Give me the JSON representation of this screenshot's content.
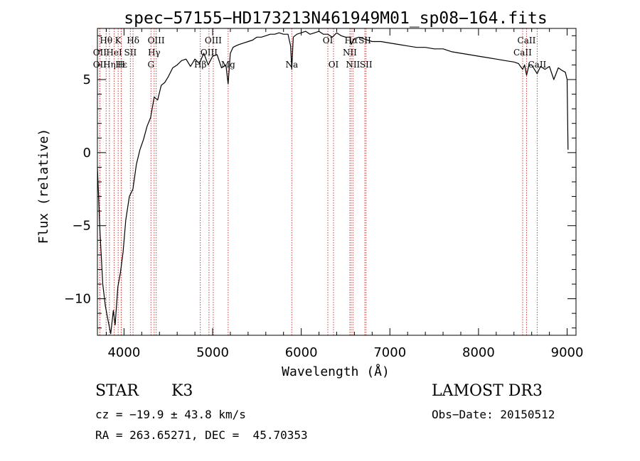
{
  "chart_data": {
    "type": "line",
    "title": "spec−57155−HD173213N461949M01_sp08−164.fits",
    "xlabel": "Wavelength (Å)",
    "ylabel": "Flux (relative)",
    "xlim": [
      3700,
      9100
    ],
    "ylim": [
      -12.5,
      8.5
    ],
    "xticks": [
      {
        "value": 4000,
        "label": "4000"
      },
      {
        "value": 5000,
        "label": "5000"
      },
      {
        "value": 6000,
        "label": "6000"
      },
      {
        "value": 7000,
        "label": "7000"
      },
      {
        "value": 8000,
        "label": "8000"
      },
      {
        "value": 9000,
        "label": "9000"
      }
    ],
    "yticks": [
      {
        "value": 5,
        "label": "5"
      },
      {
        "value": 0,
        "label": "0"
      },
      {
        "value": -5,
        "label": "−5"
      },
      {
        "value": -10,
        "label": "−10"
      }
    ],
    "series": [
      {
        "name": "flux",
        "x": [
          3700,
          3730,
          3760,
          3790,
          3820,
          3850,
          3880,
          3900,
          3930,
          3960,
          3990,
          4020,
          4060,
          4100,
          4140,
          4180,
          4220,
          4260,
          4300,
          4340,
          4380,
          4420,
          4460,
          4500,
          4550,
          4600,
          4650,
          4700,
          4750,
          4800,
          4850,
          4900,
          4950,
          5000,
          5050,
          5100,
          5150,
          5175,
          5200,
          5230,
          5260,
          5300,
          5350,
          5400,
          5450,
          5500,
          5550,
          5600,
          5650,
          5700,
          5750,
          5800,
          5850,
          5880,
          5893,
          5910,
          5950,
          6000,
          6050,
          6100,
          6150,
          6200,
          6250,
          6300,
          6350,
          6400,
          6450,
          6500,
          6550,
          6563,
          6600,
          6650,
          6700,
          6750,
          6800,
          6900,
          7000,
          7100,
          7200,
          7300,
          7400,
          7500,
          7600,
          7700,
          7800,
          7900,
          8000,
          8100,
          8200,
          8300,
          8400,
          8450,
          8498,
          8520,
          8542,
          8570,
          8600,
          8662,
          8700,
          8750,
          8800,
          8850,
          8900,
          8950,
          8980,
          9000,
          9010
        ],
        "y": [
          -1.0,
          -5.5,
          -9.0,
          -10.5,
          -11.5,
          -12.4,
          -10.8,
          -11.8,
          -9.2,
          -8.2,
          -6.8,
          -4.6,
          -3.0,
          -2.5,
          -0.8,
          0.2,
          0.9,
          1.8,
          2.4,
          3.8,
          3.6,
          4.6,
          4.8,
          5.2,
          5.8,
          6.0,
          6.3,
          6.4,
          5.9,
          6.4,
          6.1,
          6.8,
          6.0,
          6.6,
          6.7,
          5.8,
          6.0,
          4.7,
          6.8,
          7.2,
          7.3,
          7.4,
          7.5,
          7.6,
          7.7,
          7.9,
          7.9,
          8.0,
          8.1,
          8.1,
          8.2,
          8.1,
          8.1,
          7.3,
          5.7,
          7.9,
          8.1,
          8.2,
          8.3,
          8.1,
          8.2,
          8.3,
          8.1,
          8.1,
          7.9,
          8.2,
          8.0,
          7.9,
          7.9,
          7.4,
          7.8,
          7.9,
          7.8,
          7.7,
          7.6,
          7.6,
          7.5,
          7.4,
          7.3,
          7.2,
          7.2,
          7.1,
          7.1,
          6.9,
          6.8,
          6.7,
          6.6,
          6.5,
          6.4,
          6.3,
          6.2,
          6.1,
          5.7,
          6.0,
          5.3,
          6.0,
          6.0,
          5.4,
          5.9,
          5.7,
          5.9,
          5.0,
          5.8,
          5.6,
          5.5,
          5.0,
          0.2
        ]
      }
    ],
    "line_markers": [
      {
        "wavelength": 3798,
        "label": "Hθ",
        "row": 1
      },
      {
        "wavelength": 3727,
        "label": "OII",
        "row": 2
      },
      {
        "wavelength": 3835,
        "label": "Hη",
        "row": 3
      },
      {
        "wavelength": 3727,
        "label": "OII",
        "row": 3
      },
      {
        "wavelength": 3889,
        "label": "HeI",
        "row": 2
      },
      {
        "wavelength": 3934,
        "label": "K",
        "row": 1
      },
      {
        "wavelength": 3968,
        "label": "H",
        "row": 3
      },
      {
        "wavelength": 3970,
        "label": "Hε",
        "row": 3
      },
      {
        "wavelength": 4072,
        "label": "SII",
        "row": 2
      },
      {
        "wavelength": 4102,
        "label": "Hδ",
        "row": 1
      },
      {
        "wavelength": 4304,
        "label": "G",
        "row": 3
      },
      {
        "wavelength": 4340,
        "label": "Hγ",
        "row": 2
      },
      {
        "wavelength": 4363,
        "label": "OIII",
        "row": 1
      },
      {
        "wavelength": 4861,
        "label": "Hβ",
        "row": 3
      },
      {
        "wavelength": 4959,
        "label": "OIII",
        "row": 2
      },
      {
        "wavelength": 5007,
        "label": "OIII",
        "row": 1
      },
      {
        "wavelength": 5175,
        "label": "Mg",
        "row": 3
      },
      {
        "wavelength": 5893,
        "label": "Na",
        "row": 3
      },
      {
        "wavelength": 6300,
        "label": "OI",
        "row": 1
      },
      {
        "wavelength": 6364,
        "label": "OI",
        "row": 3
      },
      {
        "wavelength": 6548,
        "label": "NII",
        "row": 2
      },
      {
        "wavelength": 6563,
        "label": "Hα",
        "row": 1
      },
      {
        "wavelength": 6583,
        "label": "NII",
        "row": 3
      },
      {
        "wavelength": 6717,
        "label": "SII",
        "row": 1
      },
      {
        "wavelength": 6731,
        "label": "SII",
        "row": 3
      },
      {
        "wavelength": 8498,
        "label": "CaII",
        "row": 2
      },
      {
        "wavelength": 8542,
        "label": "CaII",
        "row": 1
      },
      {
        "wavelength": 8662,
        "label": "CaII",
        "row": 3
      }
    ]
  },
  "info": {
    "object_class": "STAR",
    "subclass": "K3",
    "survey": "LAMOST DR3",
    "redshift_line": "cz = −19.9 ± 43.8 km/s",
    "obs_date_line": "Obs−Date: 20150512",
    "coords_line": "RA = 263.65271, DEC =  45.70353"
  },
  "colors": {
    "marker_line": "#d23c3c",
    "spectrum": "#000000",
    "axes": "#000000"
  }
}
